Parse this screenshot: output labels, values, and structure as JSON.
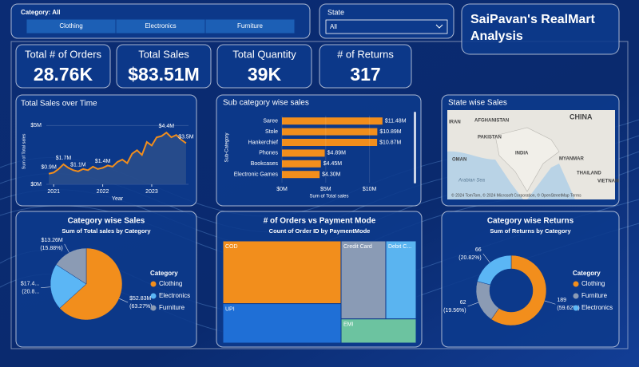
{
  "slicer": {
    "label": "Category: All",
    "options": [
      "Clothing",
      "Electronics",
      "Furniture"
    ]
  },
  "state_filter": {
    "label": "State",
    "value": "All"
  },
  "title": "SaiPavan's RealMart Analysis",
  "kpis": [
    {
      "label": "Total # of Orders",
      "value": "28.76K"
    },
    {
      "label": "Total Sales",
      "value": "$83.51M"
    },
    {
      "label": "Total Quantity",
      "value": "39K"
    },
    {
      "label": "# of Returns",
      "value": "317"
    }
  ],
  "chart_data": [
    {
      "type": "area",
      "title": "Total Sales over Time",
      "x_label": "Year",
      "y_label": "Sum of Total sales",
      "x": [
        2020.9,
        2021.0,
        2021.1,
        2021.2,
        2021.3,
        2021.4,
        2021.5,
        2021.6,
        2021.7,
        2021.8,
        2021.9,
        2022.0,
        2022.1,
        2022.2,
        2022.3,
        2022.4,
        2022.5,
        2022.6,
        2022.7,
        2022.8,
        2022.9,
        2023.0,
        2023.1,
        2023.2,
        2023.3,
        2023.4,
        2023.5,
        2023.6,
        2023.7
      ],
      "values": [
        0.9,
        1.0,
        1.3,
        1.7,
        1.4,
        1.2,
        1.1,
        1.3,
        1.2,
        1.5,
        1.3,
        1.4,
        1.6,
        1.5,
        1.9,
        2.1,
        1.8,
        2.6,
        2.9,
        2.5,
        3.6,
        3.3,
        4.0,
        4.1,
        4.4,
        4.0,
        4.2,
        3.8,
        3.5
      ],
      "value_labels": [
        "$0.9M",
        null,
        null,
        "$1.7M",
        null,
        null,
        "$1.1M",
        null,
        null,
        null,
        null,
        "$1.4M",
        null,
        null,
        null,
        null,
        null,
        null,
        null,
        null,
        null,
        null,
        null,
        null,
        "$4.4M",
        null,
        null,
        null,
        "$3.5M"
      ],
      "color": "#f28e1c",
      "xlim": [
        2020.85,
        2023.75
      ],
      "xticks": [
        2021,
        2022,
        2023
      ],
      "ylim": [
        0,
        5.5
      ],
      "yticks": [
        {
          "value": 0,
          "label": "$0M"
        },
        {
          "value": 5,
          "label": "$5M"
        }
      ]
    },
    {
      "type": "hbar",
      "title": "Sub category wise sales",
      "x_label": "Sum of Total sales",
      "y_label": "Sub-Category",
      "categories": [
        "Saree",
        "Stole",
        "Hankerchief",
        "Phones",
        "Bookcases",
        "Electronic Games"
      ],
      "values": [
        11.48,
        10.89,
        10.87,
        4.89,
        4.45,
        4.3
      ],
      "value_labels": [
        "$11.48M",
        "$10.89M",
        "$10.87M",
        "$4.89M",
        "$4.45M",
        "$4.30M"
      ],
      "color": "#f28e1c",
      "xlim": [
        0,
        12.5
      ],
      "xticks": [
        {
          "value": 0,
          "label": "$0M"
        },
        {
          "value": 5,
          "label": "$5M"
        },
        {
          "value": 10,
          "label": "$10M"
        }
      ]
    },
    {
      "type": "map",
      "title": "State wise Sales",
      "labels": [
        "IRAN",
        "AFGHANISTAN",
        "CHINA",
        "PAKISTAN",
        "INDIA",
        "OMAN",
        "Arabian Sea",
        "MYANMAR",
        "THAILAND",
        "VIETNAM"
      ],
      "attribution": "© 2024 TomTom, © 2024 Microsoft Corporation, © OpenStreetMap  Terms"
    },
    {
      "type": "pie",
      "title": "Category wise Sales",
      "subtitle": "Sum of Total sales by Category",
      "legend_title": "Category",
      "categories": [
        "Clothing",
        "Electronics",
        "Furniture"
      ],
      "values": [
        52.83,
        17.42,
        13.26
      ],
      "value_labels": [
        "$52.83M",
        "$17.4...",
        "$13.26M"
      ],
      "percent_labels": [
        "(63.27%)",
        "(20.8...",
        "(15.88%)"
      ],
      "colors": [
        "#f28e1c",
        "#5bb6f5",
        "#8b9bb4"
      ]
    },
    {
      "type": "treemap",
      "title": "# of Orders vs Payment Mode",
      "subtitle": "Count of Order ID by PaymentMode",
      "categories": [
        "COD",
        "UPI",
        "Credit Card",
        "Debit C...",
        "EMI"
      ],
      "values": [
        10800,
        6790,
        5080,
        3450,
        2640
      ],
      "colors": [
        "#f28e1c",
        "#1f6fd6",
        "#8a9bb5",
        "#5ab4f0",
        "#6cc3a0"
      ]
    },
    {
      "type": "donut",
      "title": "Category wise Returns",
      "subtitle": "Sum of Returns by Category",
      "legend_title": "Category",
      "categories": [
        "Clothing",
        "Furniture",
        "Electronics"
      ],
      "values": [
        189,
        62,
        66
      ],
      "percent_labels": [
        "(59.62%)",
        "(19.56%)",
        "(20.82%)"
      ],
      "colors": [
        "#f28e1c",
        "#8b9bb4",
        "#5bb6f5"
      ]
    }
  ]
}
